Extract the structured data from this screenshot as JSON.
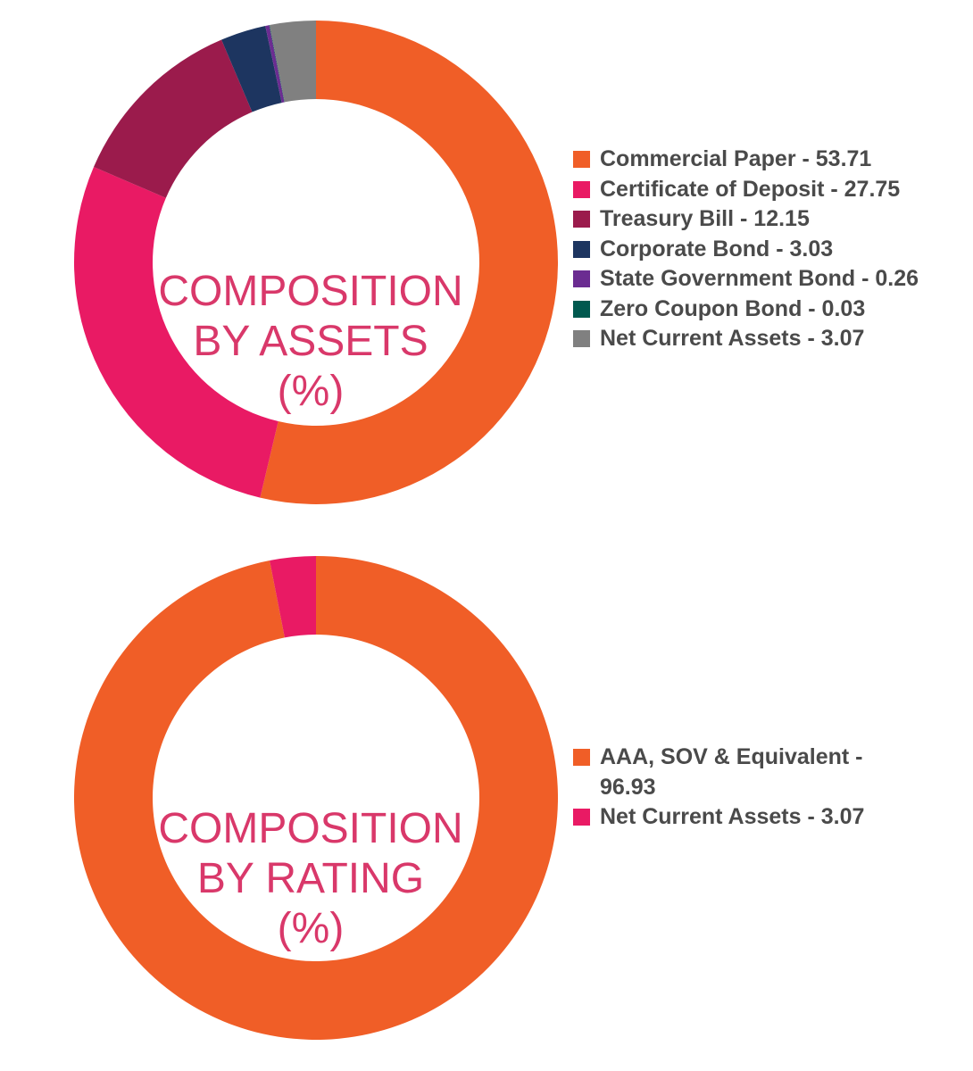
{
  "chart_data": [
    {
      "type": "pie",
      "title_lines": [
        "COMPOSITION",
        "BY ASSETS",
        "(%)"
      ],
      "categories": [
        "Commercial Paper",
        "Certificate of Deposit",
        "Treasury Bill",
        "Corporate Bond",
        "State Government Bond",
        "Zero Coupon Bond",
        "Net Current Assets"
      ],
      "values": [
        53.71,
        27.75,
        12.15,
        3.03,
        0.26,
        0.03,
        3.07
      ],
      "colors": [
        "#f05e27",
        "#e91a64",
        "#9b1b4c",
        "#1d3560",
        "#6b2c91",
        "#00594f",
        "#808080"
      ],
      "legend": [
        "Commercial Paper - 53.71",
        "Certificate of Deposit - 27.75",
        "Treasury Bill - 12.15",
        "Corporate Bond - 3.03",
        "State Government Bond - 0.26",
        "Zero Coupon Bond - 0.03",
        "Net Current Assets - 3.07"
      ],
      "legend_position": "right"
    },
    {
      "type": "pie",
      "title_lines": [
        "COMPOSITION",
        "BY RATING",
        "(%)"
      ],
      "categories": [
        "AAA, SOV & Equivalent",
        "Net Current Assets"
      ],
      "values": [
        96.93,
        3.07
      ],
      "colors": [
        "#f05e27",
        "#e91a64"
      ],
      "legend": [
        "AAA, SOV & Equivalent - 96.93",
        "Net Current Assets - 3.07"
      ],
      "legend_position": "right"
    }
  ]
}
